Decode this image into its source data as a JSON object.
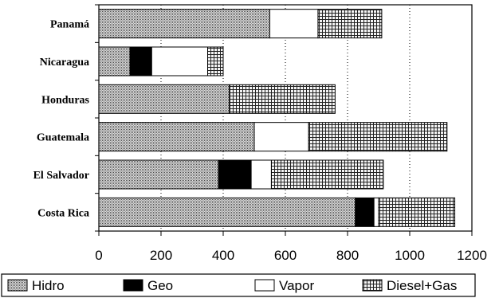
{
  "chart_data": {
    "type": "bar",
    "orientation": "horizontal",
    "stacked": true,
    "title": "",
    "xlabel": "",
    "ylabel": "",
    "categories": [
      "Panamá",
      "Nicaragua",
      "Honduras",
      "Guatemala",
      "El Salvador",
      "Costa Rica"
    ],
    "series": [
      {
        "name": "Hidro",
        "values": [
          550,
          100,
          420,
          500,
          385,
          825
        ],
        "pattern": "dots"
      },
      {
        "name": "Geo",
        "values": [
          0,
          70,
          0,
          0,
          105,
          60
        ],
        "pattern": "solid"
      },
      {
        "name": "Vapor",
        "values": [
          155,
          180,
          0,
          175,
          65,
          15
        ],
        "pattern": "none"
      },
      {
        "name": "Diesel+Gas",
        "values": [
          205,
          50,
          340,
          445,
          360,
          245
        ],
        "pattern": "grid"
      }
    ],
    "xlim": [
      0,
      1200
    ],
    "xticks": [
      0,
      200,
      400,
      600,
      800,
      1000,
      1200
    ],
    "grid": "vertical dotted",
    "legend": "bottom"
  }
}
